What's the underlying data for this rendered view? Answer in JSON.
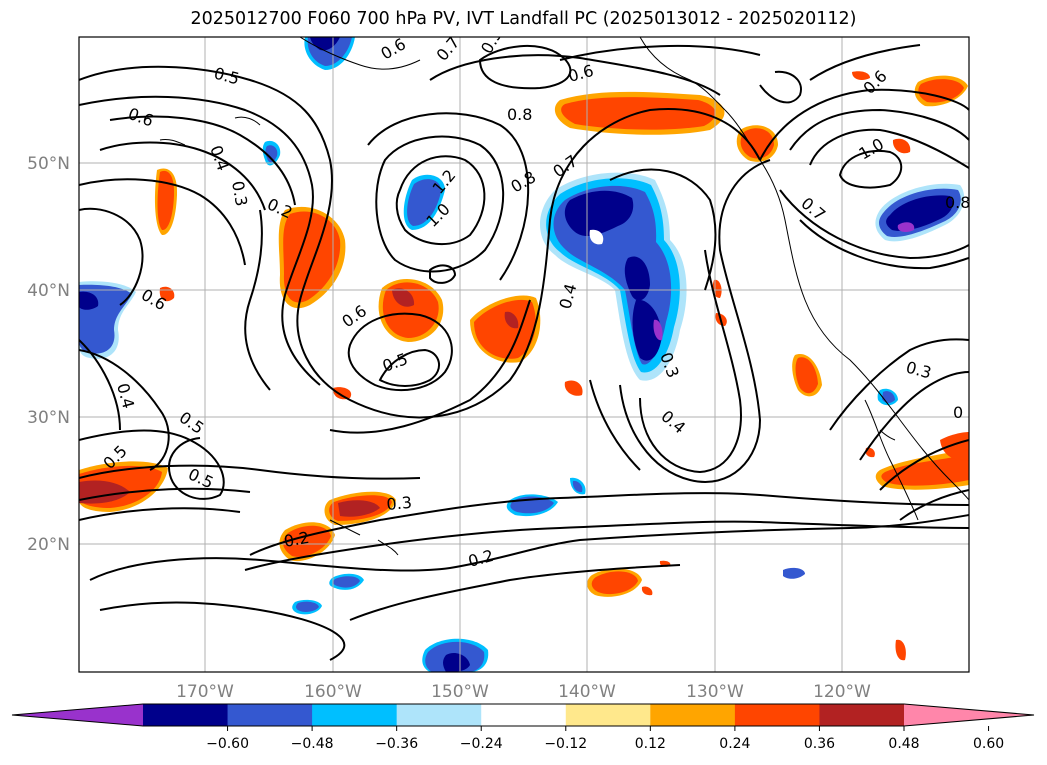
{
  "title": "2025012700 F060 700 hPa PV, IVT Landfall PC (2025013012 - 2025020112)",
  "map": {
    "lat_labels": [
      "50°N",
      "40°N",
      "30°N",
      "20°N"
    ],
    "lon_labels": [
      "170°W",
      "160°W",
      "150°W",
      "140°W",
      "130°W",
      "120°W"
    ],
    "label_color": "#808080",
    "contour_color": "#000000",
    "gridline_color": "#b0b0b0"
  },
  "contour_labels": [
    "0.5",
    "0.6",
    "0.4",
    "0.3",
    "0.2",
    "0.6",
    "0.4",
    "0.5",
    "0.5",
    "0.5",
    "0.2",
    "0.3",
    "0.2",
    "0.6",
    "0.5",
    "1.0",
    "1.2",
    "0.8",
    "0.8",
    "0.7",
    "0.6",
    "0.7",
    "0.4",
    "0.3",
    "0.4",
    "0.5",
    "0.6",
    "0.6",
    "1.0",
    "0.8",
    "0.7",
    "0.3",
    "0"
  ],
  "colorbar": {
    "ticks": [
      "−0.60",
      "−0.48",
      "−0.36",
      "−0.24",
      "−0.12",
      "0.12",
      "0.24",
      "0.36",
      "0.48",
      "0.60"
    ],
    "colors": [
      "#9932cc",
      "#00008b",
      "#3458d0",
      "#00bfff",
      "#aee4fa",
      "#ffffff",
      "#ffe88c",
      "#ffa500",
      "#ff4500",
      "#b22222",
      "#ff86aa"
    ]
  }
}
